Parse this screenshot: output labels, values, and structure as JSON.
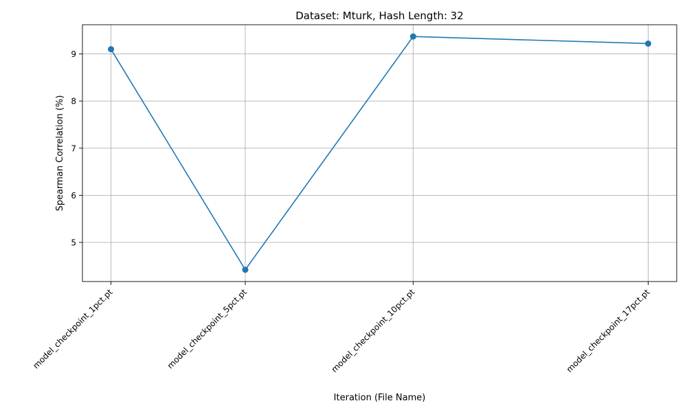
{
  "chart_data": {
    "type": "line",
    "title": "Dataset: Mturk, Hash Length: 32",
    "xlabel": "Iteration (File Name)",
    "ylabel": "Spearman Correlation (%)",
    "x": [
      1,
      5,
      10,
      17
    ],
    "categories": [
      "model_checkpoint_1pct.pt",
      "model_checkpoint_5pct.pt",
      "model_checkpoint_10pct.pt",
      "model_checkpoint_17pct.pt"
    ],
    "series": [
      {
        "values": [
          9.1,
          4.42,
          9.37,
          9.22
        ],
        "color": "#1f77b4",
        "marker": "circle"
      }
    ],
    "xlim": [
      0.15,
      17.85
    ],
    "ylim": [
      4.17,
      9.62
    ],
    "yticks": [
      5,
      6,
      7,
      8,
      9
    ],
    "grid": true
  }
}
